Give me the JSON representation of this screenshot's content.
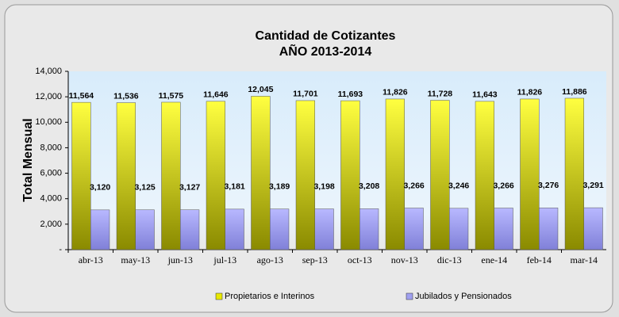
{
  "chart_data": {
    "type": "bar",
    "title": "Cantidad de Cotizantes",
    "subtitle": "AÑO 2013-2014",
    "y_label": "Total Mensual",
    "categories": [
      "abr-13",
      "may-13",
      "jun-13",
      "jul-13",
      "ago-13",
      "sep-13",
      "oct-13",
      "nov-13",
      "dic-13",
      "ene-14",
      "feb-14",
      "mar-14"
    ],
    "series": [
      {
        "name": "Propietarios e Interinos",
        "color": "#e8e800",
        "values": [
          11564,
          11536,
          11575,
          11646,
          12045,
          11701,
          11693,
          11826,
          11728,
          11643,
          11826,
          11886
        ],
        "value_labels": [
          "11,564",
          "11,536",
          "11,575",
          "11,646",
          "12,045",
          "11,701",
          "11,693",
          "11,826",
          "11,728",
          "11,643",
          "11,826",
          "11,886"
        ]
      },
      {
        "name": "Jubilados y Pensionados",
        "color": "#a0a0f0",
        "values": [
          3120,
          3125,
          3127,
          3181,
          3189,
          3198,
          3208,
          3266,
          3246,
          3266,
          3276,
          3291
        ],
        "value_labels": [
          "3,120",
          "3,125",
          "3,127",
          "3,181",
          "3,189",
          "3,198",
          "3,208",
          "3,266",
          "3,246",
          "3,266",
          "3,276",
          "3,291"
        ]
      }
    ],
    "ylim": [
      0,
      14000
    ],
    "yticks": [
      {
        "value": 0,
        "label": "-"
      },
      {
        "value": 2000,
        "label": "2,000"
      },
      {
        "value": 4000,
        "label": "4,000"
      },
      {
        "value": 6000,
        "label": "6,000"
      },
      {
        "value": 8000,
        "label": "8,000"
      },
      {
        "value": 10000,
        "label": "10,000"
      },
      {
        "value": 12000,
        "label": "12,000"
      },
      {
        "value": 14000,
        "label": "14,000"
      }
    ],
    "legend": "bottom"
  }
}
